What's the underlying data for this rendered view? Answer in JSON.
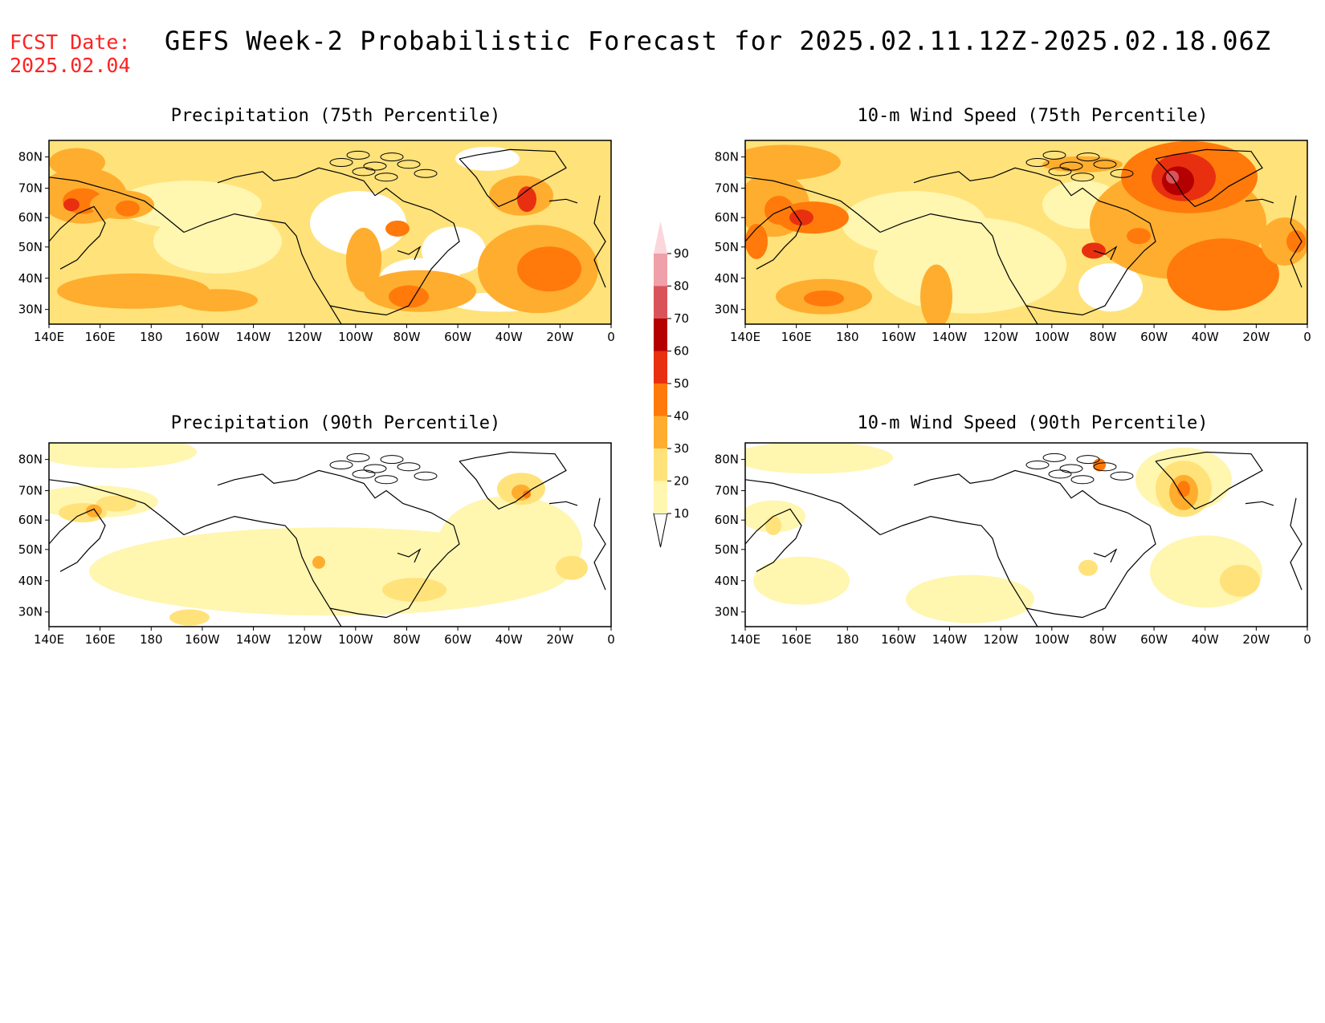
{
  "header": {
    "fcst_label": "FCST Date:",
    "fcst_date": "2025.02.04",
    "title": "GEFS Week-2 Probabilistic Forecast for 2025.02.11.12Z-2025.02.18.06Z"
  },
  "axes": {
    "lat_labels": [
      "80N",
      "70N",
      "60N",
      "50N",
      "40N",
      "30N"
    ],
    "lon_labels": [
      "140E",
      "160E",
      "180",
      "160W",
      "140W",
      "120W",
      "100W",
      "80W",
      "60W",
      "40W",
      "20W",
      "0"
    ]
  },
  "panels": [
    {
      "id": "precip75",
      "title": "Precipitation (75th Percentile)"
    },
    {
      "id": "wind75",
      "title": "10-m Wind Speed (75th Percentile)"
    },
    {
      "id": "precip90",
      "title": "Precipitation (90th Percentile)"
    },
    {
      "id": "wind90",
      "title": "10-m Wind Speed (90th Percentile)"
    }
  ],
  "colorbar": {
    "levels": [
      "10",
      "20",
      "30",
      "40",
      "50",
      "60",
      "70",
      "80",
      "90"
    ],
    "colors": [
      "#fff6b0",
      "#ffe27a",
      "#ffad2e",
      "#ff7a0a",
      "#e83010",
      "#b40000",
      "#d9545a",
      "#f0a0a8",
      "#fbd6dc"
    ]
  },
  "colors": {
    "title_red": "#ff2222"
  }
}
